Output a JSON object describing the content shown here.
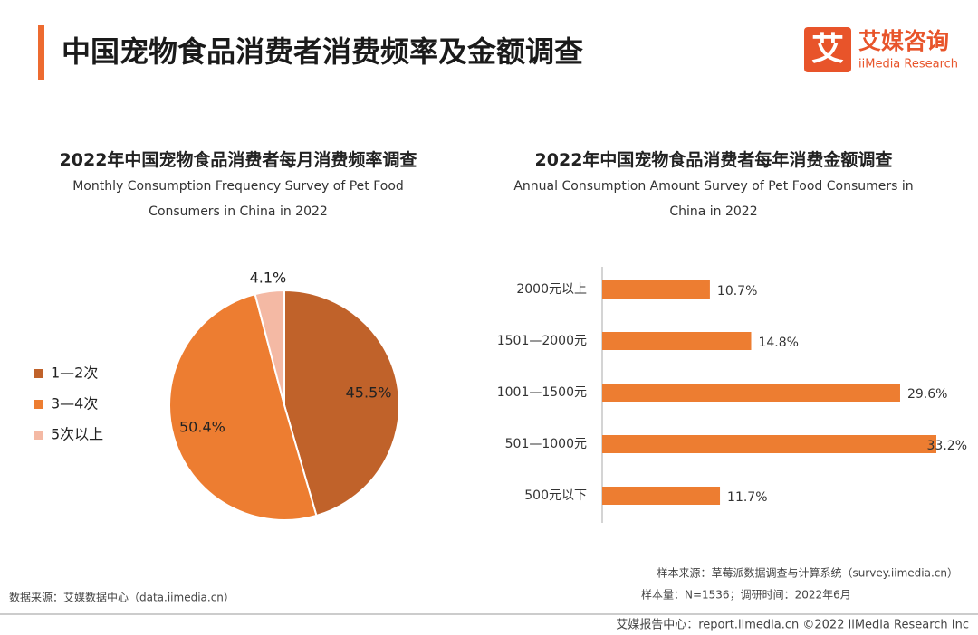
{
  "header": {
    "title": "中国宠物食品消费者消费频率及金额调查",
    "logo_icon": "艾",
    "logo_cn": "艾媒咨询",
    "logo_en": "iiMedia Research"
  },
  "chart_data": [
    {
      "type": "pie",
      "title": "2022年中国宠物食品消费者每月消费频率调查",
      "subtitle": "Monthly Consumption Frequency Survey of Pet Food Consumers in China in 2022",
      "categories": [
        "1—2次",
        "3—4次",
        "5次以上"
      ],
      "values": [
        45.5,
        50.4,
        4.1
      ],
      "value_labels": [
        "45.5%",
        "50.4%",
        "4.1%"
      ],
      "colors": [
        "#c0622a",
        "#ed7d31",
        "#f4b9a4"
      ],
      "legend_position": "left"
    },
    {
      "type": "bar",
      "orientation": "horizontal",
      "title": "2022年中国宠物食品消费者每年消费金额调查",
      "subtitle": "Annual Consumption Amount Survey of Pet Food Consumers in China in 2022",
      "categories": [
        "2000元以上",
        "1501—2000元",
        "1001—1500元",
        "501—1000元",
        "500元以下"
      ],
      "values": [
        10.7,
        14.8,
        29.6,
        33.2,
        11.7
      ],
      "value_labels": [
        "10.7%",
        "14.8%",
        "29.6%",
        "33.2%",
        "11.7%"
      ],
      "color": "#ed7d31"
    }
  ],
  "footer": {
    "data_source": "数据来源：艾媒数据中心（data.iimedia.cn）",
    "sample_source": "样本来源：草莓派数据调查与计算系统（survey.iimedia.cn）",
    "sample_size": "样本量：N=1536；调研时间：2022年6月",
    "copyright": "艾媒报告中心：report.iimedia.cn  ©2022  iiMedia Research Inc"
  }
}
